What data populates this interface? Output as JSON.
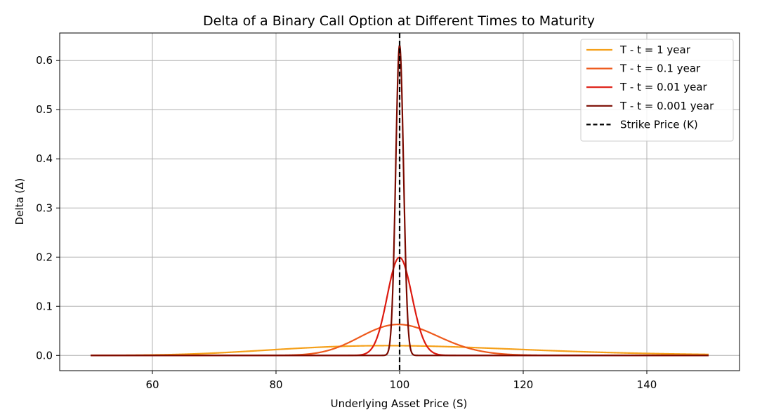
{
  "chart_data": {
    "type": "line",
    "title": "Delta of a Binary Call Option at Different Times to Maturity",
    "xlabel": "Underlying Asset Price (S)",
    "ylabel": "Delta (Δ)",
    "xlim": [
      45,
      155
    ],
    "ylim": [
      -0.031,
      0.656
    ],
    "xticks": [
      60,
      80,
      100,
      120,
      140
    ],
    "yticks": [
      0.0,
      0.1,
      0.2,
      0.3,
      0.4,
      0.5,
      0.6
    ],
    "ytick_labels": [
      "0.0",
      "0.1",
      "0.2",
      "0.3",
      "0.4",
      "0.5",
      "0.6"
    ],
    "grid": true,
    "legend_position": "top-right",
    "x_range": [
      50,
      150
    ],
    "strike": 100,
    "volatility": 0.2,
    "series": [
      {
        "name": "T - t = 1 year",
        "T": 1,
        "color": "#f5a01a"
      },
      {
        "name": "T - t = 0.1 year",
        "T": 0.1,
        "color": "#ee5a1c"
      },
      {
        "name": "T - t = 0.01 year",
        "T": 0.01,
        "color": "#dd1a10"
      },
      {
        "name": "T - t = 0.001 year",
        "T": 0.001,
        "color": "#7a0a00"
      }
    ],
    "reference_line": {
      "name": "Strike Price (K)",
      "x": 100,
      "color": "#000000",
      "style": "dashed"
    }
  }
}
